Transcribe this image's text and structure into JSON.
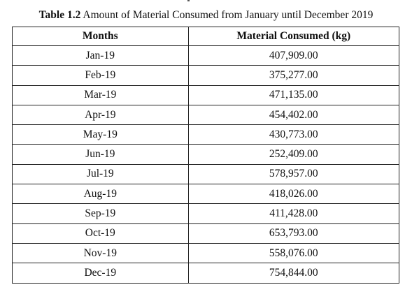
{
  "caption": {
    "label": "Table 1.2",
    "text": " Amount of Material Consumed from January until December 2019"
  },
  "table": {
    "headers": [
      "Months",
      "Material Consumed (kg)"
    ],
    "rows": [
      {
        "month": "Jan-19",
        "value": "407,909.00"
      },
      {
        "month": "Feb-19",
        "value": "375,277.00"
      },
      {
        "month": "Mar-19",
        "value": "471,135.00"
      },
      {
        "month": "Apr-19",
        "value": "454,402.00"
      },
      {
        "month": "May-19",
        "value": "430,773.00"
      },
      {
        "month": "Jun-19",
        "value": "252,409.00"
      },
      {
        "month": "Jul-19",
        "value": "578,957.00"
      },
      {
        "month": "Aug-19",
        "value": "418,026.00"
      },
      {
        "month": "Sep-19",
        "value": "411,428.00"
      },
      {
        "month": "Oct-19",
        "value": "653,793.00"
      },
      {
        "month": "Nov-19",
        "value": "558,076.00"
      },
      {
        "month": "Dec-19",
        "value": "754,844.00"
      }
    ]
  }
}
